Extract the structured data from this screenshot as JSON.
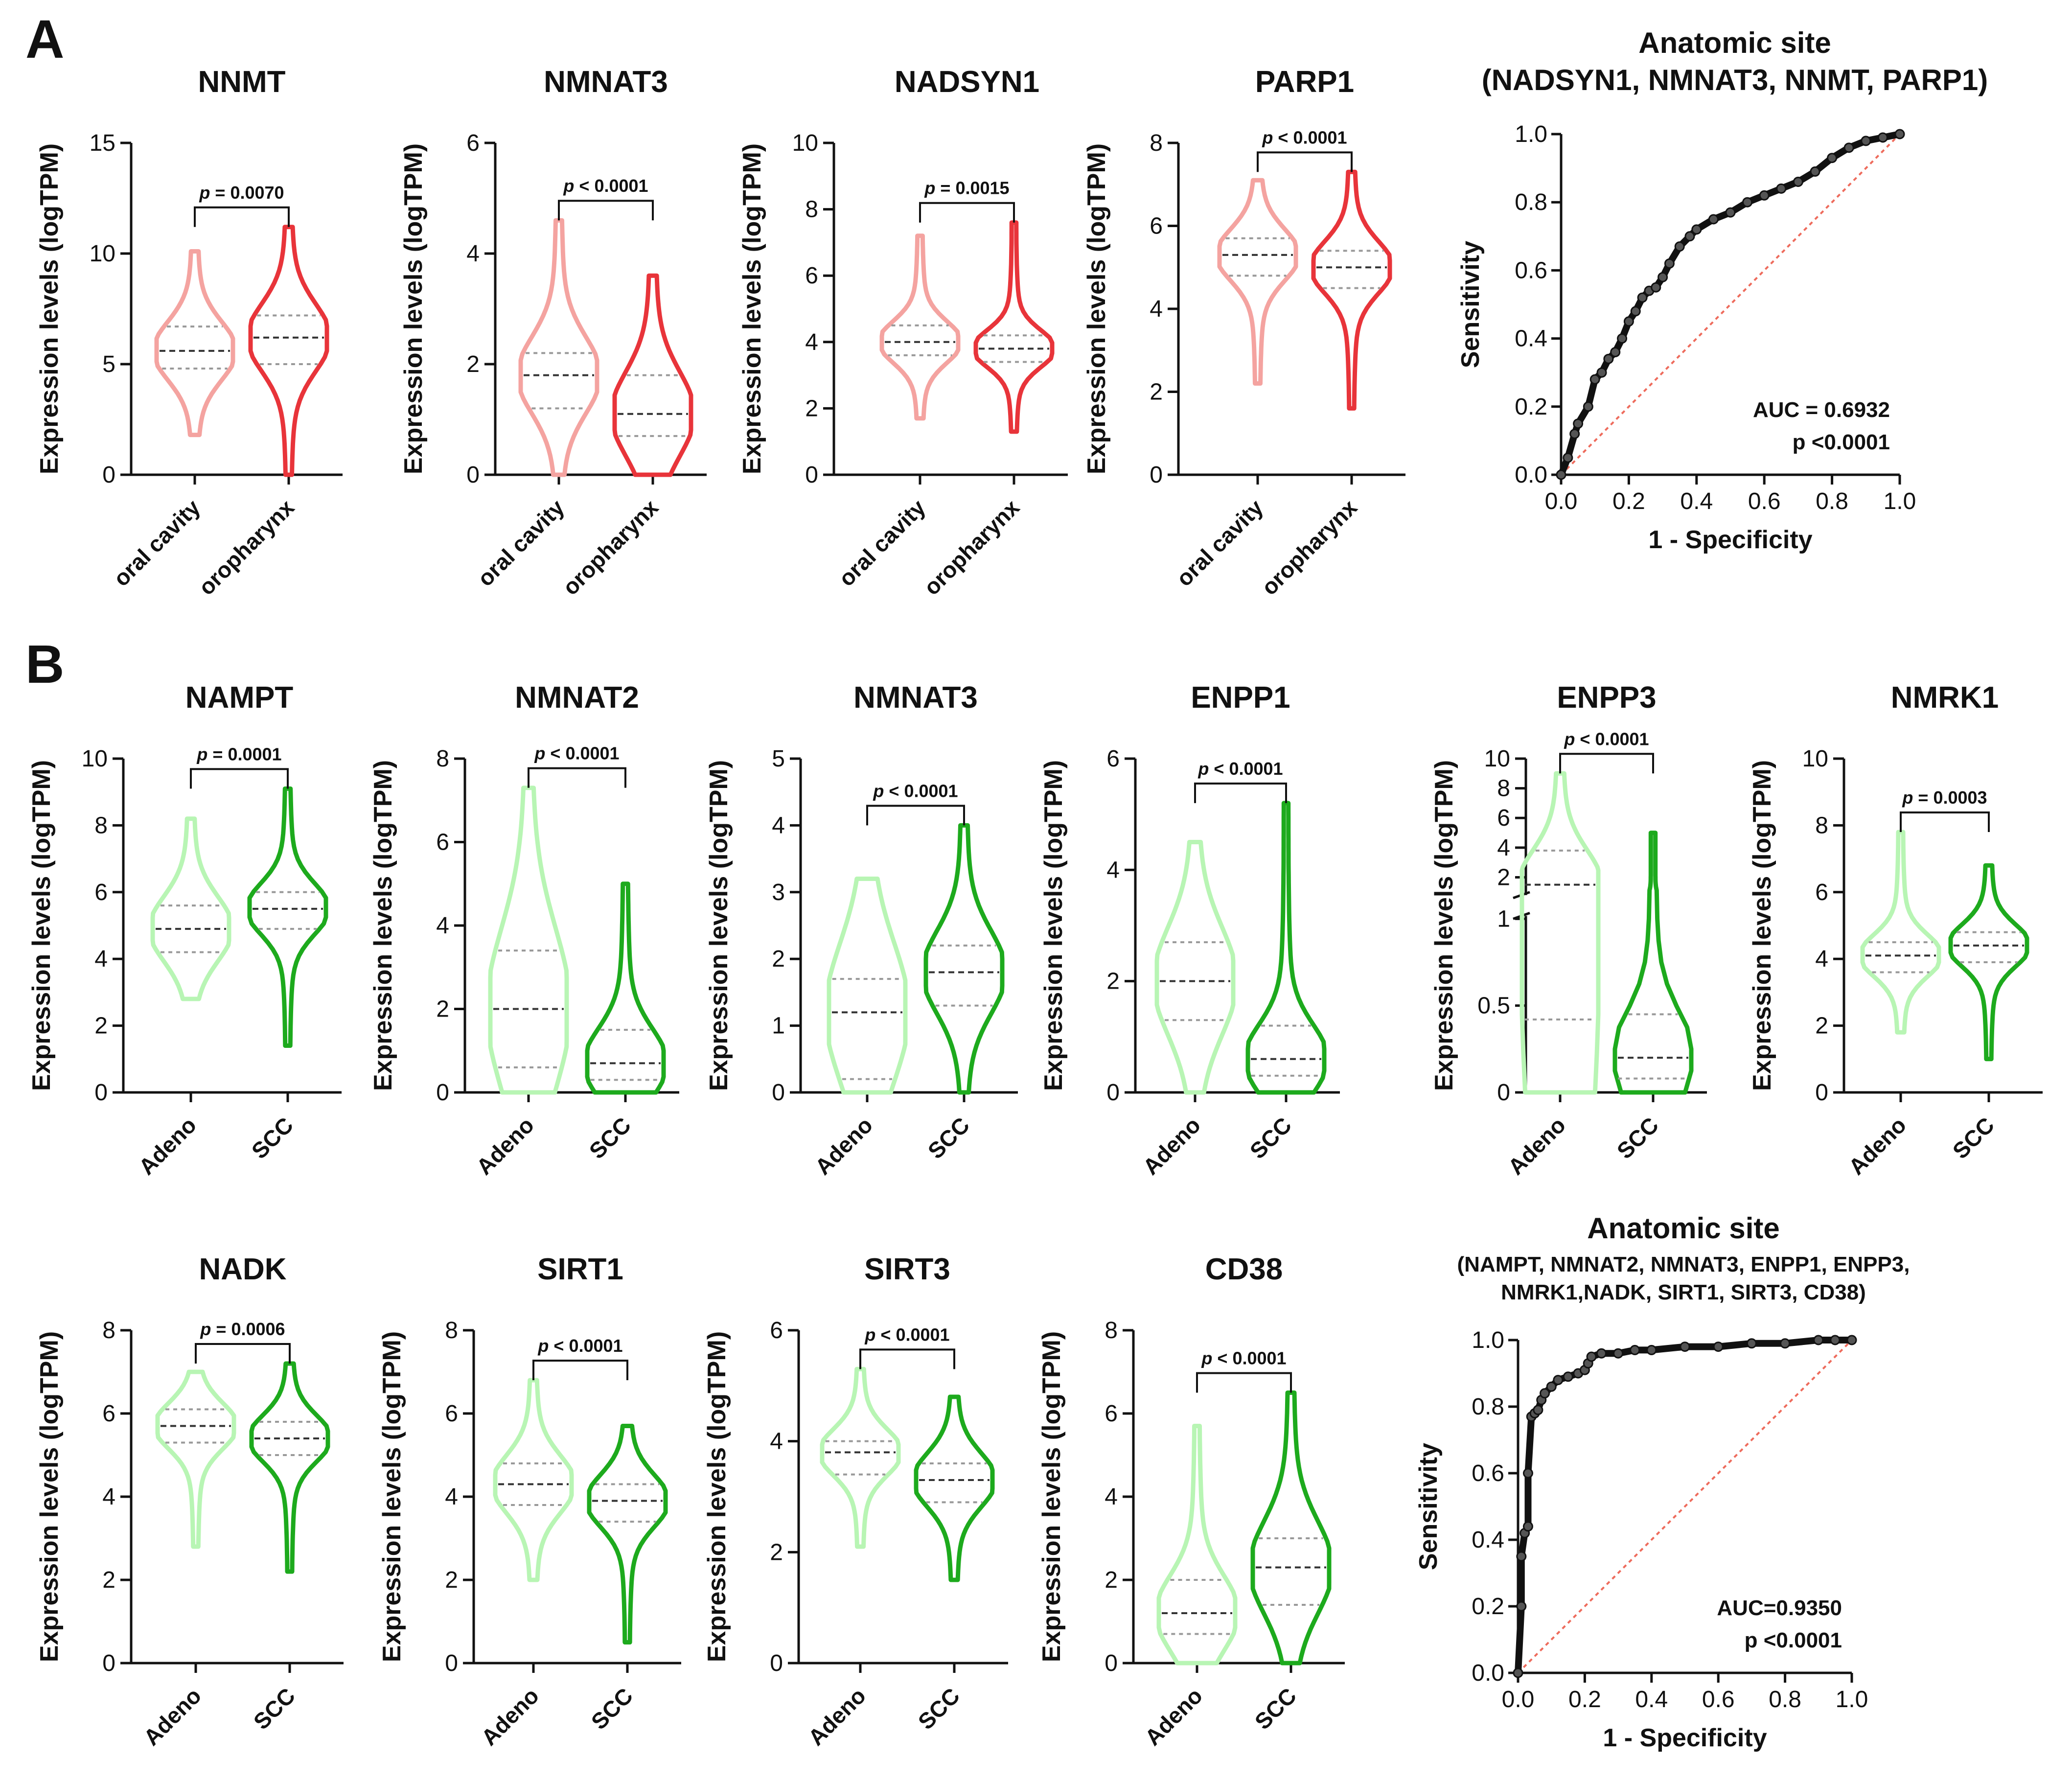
{
  "panel_labels": [
    "A",
    "B"
  ],
  "chart_data": [
    {
      "type": "violin",
      "id": "a_nnmt",
      "title": "NNMT",
      "ylabel": "Expression levels (logTPM)",
      "ylim": [
        0,
        15
      ],
      "yticks": [
        0,
        5,
        10,
        15
      ],
      "categories": [
        "oral cavity",
        "oropharynx"
      ],
      "p_value": "= 0.0070",
      "colors": [
        "#f4a3a0",
        "#e8343a"
      ],
      "series": [
        {
          "name": "oral cavity",
          "min": 1.8,
          "max": 10.1,
          "q1": 4.8,
          "median": 5.6,
          "q3": 6.7
        },
        {
          "name": "oropharynx",
          "min": 0.0,
          "max": 11.2,
          "q1": 5.0,
          "median": 6.2,
          "q3": 7.2
        }
      ]
    },
    {
      "type": "violin",
      "id": "a_nmnat3",
      "title": "NMNAT3",
      "ylabel": "Expression levels (logTPM)",
      "ylim": [
        0,
        6
      ],
      "yticks": [
        0,
        2,
        4,
        6
      ],
      "categories": [
        "oral cavity",
        "oropharynx"
      ],
      "p_value": "< 0.0001",
      "colors": [
        "#f4a3a0",
        "#e8343a"
      ],
      "series": [
        {
          "name": "oral cavity",
          "min": 0.0,
          "max": 4.6,
          "q1": 1.2,
          "median": 1.8,
          "q3": 2.2
        },
        {
          "name": "oropharynx",
          "min": 0.0,
          "max": 3.6,
          "q1": 0.7,
          "median": 1.1,
          "q3": 1.8
        }
      ]
    },
    {
      "type": "violin",
      "id": "a_nadsyn1",
      "title": "NADSYN1",
      "ylabel": "Expression levels (logTPM)",
      "ylim": [
        0,
        10
      ],
      "yticks": [
        0,
        2,
        4,
        6,
        8,
        10
      ],
      "categories": [
        "oral cavity",
        "oropharynx"
      ],
      "p_value": "= 0.0015",
      "colors": [
        "#f4a3a0",
        "#e8343a"
      ],
      "series": [
        {
          "name": "oral cavity",
          "min": 1.7,
          "max": 7.2,
          "q1": 3.6,
          "median": 4.0,
          "q3": 4.5
        },
        {
          "name": "oropharynx",
          "min": 1.3,
          "max": 7.6,
          "q1": 3.4,
          "median": 3.8,
          "q3": 4.2
        }
      ]
    },
    {
      "type": "violin",
      "id": "a_parp1",
      "title": "PARP1",
      "ylabel": "Expression levels (logTPM)",
      "ylim": [
        0,
        8
      ],
      "yticks": [
        0,
        2,
        4,
        6,
        8
      ],
      "categories": [
        "oral cavity",
        "oropharynx"
      ],
      "p_value": "< 0.0001",
      "colors": [
        "#f4a3a0",
        "#e8343a"
      ],
      "series": [
        {
          "name": "oral cavity",
          "min": 2.2,
          "max": 7.1,
          "q1": 4.8,
          "median": 5.3,
          "q3": 5.7
        },
        {
          "name": "oropharynx",
          "min": 1.6,
          "max": 7.3,
          "q1": 4.5,
          "median": 5.0,
          "q3": 5.4
        }
      ]
    },
    {
      "type": "roc",
      "id": "a_roc",
      "title": "Anatomic site",
      "subtitle": "(NADSYN1, NMNAT3, NNMT, PARP1)",
      "xlabel": "1 - Specificity",
      "ylabel": "Sensitivity",
      "ticks": [
        0.0,
        0.2,
        0.4,
        0.6,
        0.8,
        1.0
      ],
      "auc_label": "AUC = 0.6932",
      "p_label": "p <0.0001",
      "x": [
        0,
        0.02,
        0.04,
        0.05,
        0.08,
        0.1,
        0.12,
        0.14,
        0.16,
        0.18,
        0.2,
        0.22,
        0.24,
        0.26,
        0.28,
        0.3,
        0.32,
        0.35,
        0.38,
        0.4,
        0.45,
        0.5,
        0.55,
        0.6,
        0.65,
        0.7,
        0.75,
        0.8,
        0.85,
        0.9,
        0.95,
        1.0
      ],
      "y": [
        0,
        0.05,
        0.12,
        0.15,
        0.2,
        0.28,
        0.3,
        0.34,
        0.36,
        0.4,
        0.45,
        0.48,
        0.52,
        0.54,
        0.55,
        0.58,
        0.62,
        0.67,
        0.7,
        0.72,
        0.75,
        0.77,
        0.8,
        0.82,
        0.84,
        0.86,
        0.89,
        0.93,
        0.96,
        0.98,
        0.99,
        1.0
      ]
    },
    {
      "type": "violin",
      "id": "b_nampt",
      "title": "NAMPT",
      "ylabel": "Expression levels (logTPM)",
      "ylim": [
        0,
        10
      ],
      "yticks": [
        0,
        2,
        4,
        6,
        8,
        10
      ],
      "categories": [
        "Adeno",
        "SCC"
      ],
      "p_value": "= 0.0001",
      "colors": [
        "#b8f5b4",
        "#1daa1d"
      ],
      "series": [
        {
          "name": "Adeno",
          "min": 2.8,
          "max": 8.2,
          "q1": 4.2,
          "median": 4.9,
          "q3": 5.6
        },
        {
          "name": "SCC",
          "min": 1.4,
          "max": 9.1,
          "q1": 4.9,
          "median": 5.5,
          "q3": 6.0
        }
      ]
    },
    {
      "type": "violin",
      "id": "b_nmnat2",
      "title": "NMNAT2",
      "ylabel": "Expression levels (logTPM)",
      "ylim": [
        0,
        8
      ],
      "yticks": [
        0,
        2,
        4,
        6,
        8
      ],
      "categories": [
        "Adeno",
        "SCC"
      ],
      "p_value": "< 0.0001",
      "colors": [
        "#b8f5b4",
        "#1daa1d"
      ],
      "series": [
        {
          "name": "Adeno",
          "min": 0.0,
          "max": 7.3,
          "q1": 0.6,
          "median": 2.0,
          "q3": 3.4
        },
        {
          "name": "SCC",
          "min": 0.0,
          "max": 5.0,
          "q1": 0.3,
          "median": 0.7,
          "q3": 1.5
        }
      ]
    },
    {
      "type": "violin",
      "id": "b_nmnat3",
      "title": "NMNAT3",
      "ylabel": "Expression levels (logTPM)",
      "ylim": [
        0,
        5
      ],
      "yticks": [
        0,
        1,
        2,
        3,
        4,
        5
      ],
      "categories": [
        "Adeno",
        "SCC"
      ],
      "p_value": "< 0.0001",
      "colors": [
        "#b8f5b4",
        "#1daa1d"
      ],
      "series": [
        {
          "name": "Adeno",
          "min": 0.0,
          "max": 3.2,
          "q1": 0.2,
          "median": 1.2,
          "q3": 1.7
        },
        {
          "name": "SCC",
          "min": 0.0,
          "max": 4.0,
          "q1": 1.3,
          "median": 1.8,
          "q3": 2.2
        }
      ]
    },
    {
      "type": "violin",
      "id": "b_enpp1",
      "title": "ENPP1",
      "ylabel": "Expression levels (logTPM)",
      "ylim": [
        0,
        6
      ],
      "yticks": [
        0,
        2,
        4,
        6
      ],
      "categories": [
        "Adeno",
        "SCC"
      ],
      "p_value": "< 0.0001",
      "colors": [
        "#b8f5b4",
        "#1daa1d"
      ],
      "series": [
        {
          "name": "Adeno",
          "min": 0.0,
          "max": 4.5,
          "q1": 1.3,
          "median": 2.0,
          "q3": 2.7
        },
        {
          "name": "SCC",
          "min": 0.0,
          "max": 5.2,
          "q1": 0.3,
          "median": 0.6,
          "q3": 1.2
        }
      ]
    },
    {
      "type": "violin",
      "id": "b_enpp3",
      "title": "ENPP3",
      "ylabel": "Expression levels (logTPM)",
      "ylim": [
        0,
        10
      ],
      "yticks": [
        0,
        0.5,
        1.0,
        2,
        4,
        6,
        8,
        10
      ],
      "broken_axis": true,
      "categories": [
        "Adeno",
        "SCC"
      ],
      "p_value": "< 0.0001",
      "colors": [
        "#b8f5b4",
        "#1daa1d"
      ],
      "series": [
        {
          "name": "Adeno",
          "min": 0.0,
          "max": 9.0,
          "q1": 0.42,
          "median": 1.5,
          "q3": 3.8
        },
        {
          "name": "SCC",
          "min": 0.0,
          "max": 5.0,
          "q1": 0.08,
          "median": 0.2,
          "q3": 0.45
        }
      ]
    },
    {
      "type": "violin",
      "id": "b_nmrk1",
      "title": "NMRK1",
      "ylabel": "Expression levels (logTPM)",
      "ylim": [
        0,
        10
      ],
      "yticks": [
        0,
        2,
        4,
        6,
        8,
        10
      ],
      "categories": [
        "Adeno",
        "SCC"
      ],
      "p_value": "= 0.0003",
      "colors": [
        "#b8f5b4",
        "#1daa1d"
      ],
      "series": [
        {
          "name": "Adeno",
          "min": 1.8,
          "max": 7.8,
          "q1": 3.6,
          "median": 4.1,
          "q3": 4.5
        },
        {
          "name": "SCC",
          "min": 1.0,
          "max": 6.8,
          "q1": 3.9,
          "median": 4.4,
          "q3": 4.8
        }
      ]
    },
    {
      "type": "violin",
      "id": "b_nadk",
      "title": "NADK",
      "ylabel": "Expression levels (logTPM)",
      "ylim": [
        0,
        8
      ],
      "yticks": [
        0,
        2,
        4,
        6,
        8
      ],
      "categories": [
        "Adeno",
        "SCC"
      ],
      "p_value": "= 0.0006",
      "colors": [
        "#b8f5b4",
        "#1daa1d"
      ],
      "series": [
        {
          "name": "Adeno",
          "min": 2.8,
          "max": 7.0,
          "q1": 5.3,
          "median": 5.7,
          "q3": 6.1
        },
        {
          "name": "SCC",
          "min": 2.2,
          "max": 7.2,
          "q1": 5.0,
          "median": 5.4,
          "q3": 5.8
        }
      ]
    },
    {
      "type": "violin",
      "id": "b_sirt1",
      "title": "SIRT1",
      "ylabel": "Expression levels (logTPM)",
      "ylim": [
        0,
        8
      ],
      "yticks": [
        0,
        2,
        4,
        6,
        8
      ],
      "categories": [
        "Adeno",
        "SCC"
      ],
      "p_value": "< 0.0001",
      "colors": [
        "#b8f5b4",
        "#1daa1d"
      ],
      "series": [
        {
          "name": "Adeno",
          "min": 2.0,
          "max": 6.8,
          "q1": 3.8,
          "median": 4.3,
          "q3": 4.8
        },
        {
          "name": "SCC",
          "min": 0.5,
          "max": 5.7,
          "q1": 3.4,
          "median": 3.9,
          "q3": 4.3
        }
      ]
    },
    {
      "type": "violin",
      "id": "b_sirt3",
      "title": "SIRT3",
      "ylabel": "Expression levels (logTPM)",
      "ylim": [
        0,
        6
      ],
      "yticks": [
        0,
        2,
        4,
        6
      ],
      "categories": [
        "Adeno",
        "SCC"
      ],
      "p_value": "< 0.0001",
      "colors": [
        "#b8f5b4",
        "#1daa1d"
      ],
      "series": [
        {
          "name": "Adeno",
          "min": 2.1,
          "max": 5.3,
          "q1": 3.4,
          "median": 3.8,
          "q3": 4.0
        },
        {
          "name": "SCC",
          "min": 1.5,
          "max": 4.8,
          "q1": 2.9,
          "median": 3.3,
          "q3": 3.6
        }
      ]
    },
    {
      "type": "violin",
      "id": "b_cd38",
      "title": "CD38",
      "ylabel": "Expression levels (logTPM)",
      "ylim": [
        0,
        8
      ],
      "yticks": [
        0,
        2,
        4,
        6,
        8
      ],
      "categories": [
        "Adeno",
        "SCC"
      ],
      "p_value": "< 0.0001",
      "colors": [
        "#b8f5b4",
        "#1daa1d"
      ],
      "series": [
        {
          "name": "Adeno",
          "min": 0.0,
          "max": 5.7,
          "q1": 0.7,
          "median": 1.2,
          "q3": 2.0
        },
        {
          "name": "SCC",
          "min": 0.0,
          "max": 6.5,
          "q1": 1.4,
          "median": 2.3,
          "q3": 3.0
        }
      ]
    },
    {
      "type": "roc",
      "id": "b_roc",
      "title": "Anatomic site",
      "subtitle": "(NAMPT, NMNAT2, NMNAT3, ENPP1, ENPP3,",
      "subtitle2": "NMRK1,NADK, SIRT1, SIRT3, CD38)",
      "xlabel": "1 - Specificity",
      "ylabel": "Sensitivity",
      "ticks": [
        0.0,
        0.2,
        0.4,
        0.6,
        0.8,
        1.0
      ],
      "auc_label": "AUC=0.9350",
      "p_label": "p <0.0001",
      "x": [
        0,
        0.01,
        0.01,
        0.02,
        0.03,
        0.03,
        0.04,
        0.05,
        0.06,
        0.07,
        0.08,
        0.1,
        0.12,
        0.15,
        0.18,
        0.2,
        0.21,
        0.22,
        0.25,
        0.3,
        0.35,
        0.4,
        0.5,
        0.6,
        0.7,
        0.8,
        0.9,
        0.95,
        1.0
      ],
      "y": [
        0,
        0.2,
        0.35,
        0.42,
        0.44,
        0.6,
        0.77,
        0.78,
        0.79,
        0.82,
        0.84,
        0.86,
        0.88,
        0.89,
        0.9,
        0.91,
        0.93,
        0.95,
        0.96,
        0.96,
        0.97,
        0.97,
        0.98,
        0.98,
        0.99,
        0.99,
        1.0,
        1.0,
        1.0
      ]
    }
  ]
}
